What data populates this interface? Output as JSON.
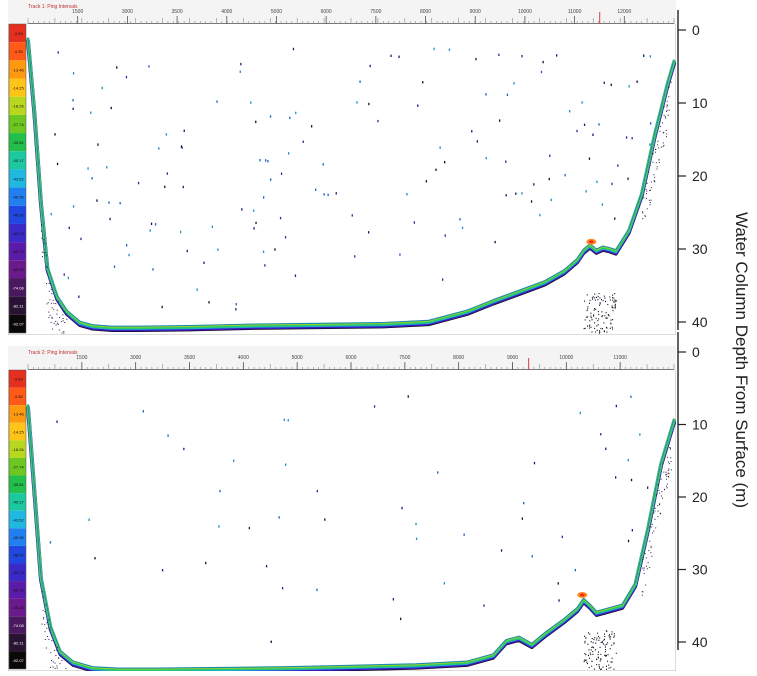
{
  "chart_data": [
    {
      "type": "echogram",
      "panel_label": "Track 1: Ping Intervals",
      "x_ticks": [
        "1500",
        "3000",
        "3500",
        "4000",
        "5000",
        "6000",
        "7500",
        "8000",
        "9000",
        "10000",
        "11000",
        "12000"
      ],
      "y_ticks": [
        0,
        10,
        20,
        30,
        40
      ],
      "ylim": [
        0,
        42
      ],
      "xlim": [
        0,
        1
      ],
      "color_scale": [
        "-3.93",
        "-3.35",
        "-13.46",
        "-14.25",
        "-18.26",
        "-27.74",
        "-30.81",
        "-40.17",
        "-43.52",
        "-46.56",
        "-48.92",
        "-53.73",
        "-60.19",
        "-65.25",
        "-74.08",
        "-82.11",
        "-92.07"
      ],
      "bottom_profile": {
        "x": [
          0,
          0.01,
          0.02,
          0.03,
          0.045,
          0.06,
          0.08,
          0.1,
          0.13,
          0.17,
          0.25,
          0.35,
          0.45,
          0.55,
          0.62,
          0.68,
          0.72,
          0.76,
          0.8,
          0.83,
          0.85,
          0.86,
          0.87,
          0.88,
          0.89,
          0.9,
          0.91,
          0.93,
          0.95,
          0.97,
          0.99,
          1.0
        ],
        "y": [
          2,
          12,
          24,
          33,
          37,
          39,
          40.5,
          41,
          41.2,
          41.2,
          41.1,
          40.9,
          40.8,
          40.7,
          40.4,
          39,
          37.6,
          36.3,
          35,
          33.5,
          32,
          30.7,
          30,
          30.7,
          30.3,
          30.5,
          30.8,
          28,
          23,
          15,
          8,
          5
        ]
      }
    },
    {
      "type": "echogram",
      "panel_label": "Track 2: Ping Intervals",
      "x_ticks": [
        "1500",
        "3000",
        "3500",
        "4000",
        "5000",
        "6000",
        "7500",
        "8000",
        "9000",
        "10000",
        "11000"
      ],
      "y_ticks": [
        0,
        10,
        20,
        30,
        40
      ],
      "ylim": [
        0,
        42
      ],
      "xlim": [
        0,
        1
      ],
      "color_scale": [
        "-3.93",
        "-3.35",
        "-13.46",
        "-14.25",
        "-18.26",
        "-27.74",
        "-30.81",
        "-40.17",
        "-43.52",
        "-46.56",
        "-48.92",
        "-53.73",
        "-60.19",
        "-65.25",
        "-74.08",
        "-82.11",
        "-92.07"
      ],
      "bottom_profile": {
        "x": [
          0,
          0.01,
          0.02,
          0.035,
          0.05,
          0.07,
          0.1,
          0.14,
          0.2,
          0.3,
          0.4,
          0.5,
          0.6,
          0.68,
          0.72,
          0.74,
          0.76,
          0.78,
          0.8,
          0.83,
          0.85,
          0.86,
          0.87,
          0.88,
          0.9,
          0.92,
          0.94,
          0.96,
          0.98,
          1.0
        ],
        "y": [
          5,
          17,
          29,
          36,
          39.5,
          41,
          41.8,
          42,
          42,
          41.9,
          41.8,
          41.6,
          41.4,
          41,
          40,
          38,
          37.5,
          38.5,
          37,
          35,
          33.5,
          32.2,
          33,
          34,
          33.5,
          33,
          30,
          22,
          13,
          7
        ]
      }
    }
  ],
  "shared_axis": {
    "label": "Water Column Depth From Surface (m)",
    "panels": [
      {
        "ticks": [
          0,
          10,
          20,
          30,
          40
        ]
      },
      {
        "ticks": [
          0,
          10,
          20,
          30,
          40
        ]
      }
    ]
  }
}
